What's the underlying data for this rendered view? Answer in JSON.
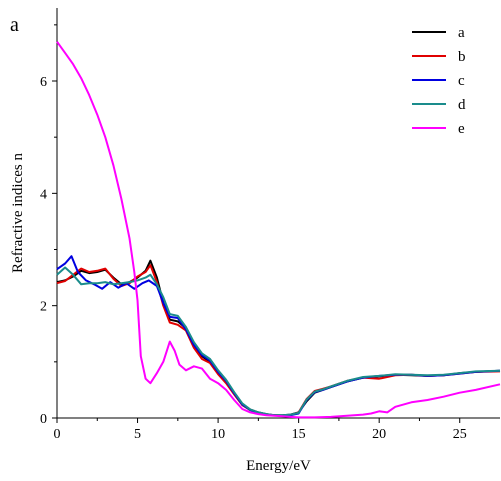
{
  "panel_label": "a",
  "chart_data": {
    "type": "line",
    "title": "",
    "xlabel": "Energy/eV",
    "ylabel": "Refractive indices n",
    "xlim": [
      0,
      27.5
    ],
    "ylim": [
      0,
      7.3
    ],
    "xticks": [
      0,
      5,
      10,
      15,
      20,
      25
    ],
    "yticks": [
      0,
      2,
      4,
      6
    ],
    "legend_position": "top-right",
    "grid": false,
    "series": [
      {
        "name": "a",
        "color": "#000000",
        "x": [
          0,
          0.5,
          1,
          1.5,
          2,
          2.5,
          3,
          3.5,
          4,
          4.5,
          5,
          5.5,
          5.8,
          6.2,
          6.6,
          7,
          7.5,
          8,
          8.5,
          9,
          9.5,
          10,
          10.5,
          11,
          11.5,
          12,
          12.5,
          13,
          13.5,
          14,
          14.5,
          15,
          15.5,
          16,
          16.5,
          17,
          18,
          19,
          20,
          21,
          22,
          23,
          24,
          25,
          26,
          27.5
        ],
        "y": [
          2.42,
          2.45,
          2.52,
          2.62,
          2.58,
          2.6,
          2.64,
          2.5,
          2.38,
          2.42,
          2.5,
          2.62,
          2.8,
          2.5,
          2.05,
          1.75,
          1.72,
          1.6,
          1.3,
          1.1,
          1.0,
          0.8,
          0.65,
          0.45,
          0.25,
          0.15,
          0.1,
          0.07,
          0.05,
          0.05,
          0.06,
          0.1,
          0.3,
          0.45,
          0.5,
          0.55,
          0.65,
          0.72,
          0.74,
          0.77,
          0.76,
          0.75,
          0.76,
          0.8,
          0.82,
          0.84
        ]
      },
      {
        "name": "b",
        "color": "#e00000",
        "x": [
          0,
          0.5,
          1,
          1.5,
          2,
          2.5,
          3,
          3.5,
          4,
          4.5,
          5,
          5.5,
          5.8,
          6.2,
          6.6,
          7,
          7.5,
          8,
          8.5,
          9,
          9.5,
          10,
          10.5,
          11,
          11.5,
          12,
          12.5,
          13,
          13.5,
          14,
          14.5,
          15,
          15.5,
          16,
          16.5,
          17,
          18,
          19,
          20,
          21,
          22,
          23,
          24,
          25,
          26,
          27.5
        ],
        "y": [
          2.4,
          2.44,
          2.55,
          2.66,
          2.6,
          2.62,
          2.66,
          2.48,
          2.35,
          2.4,
          2.52,
          2.6,
          2.72,
          2.42,
          2.0,
          1.7,
          1.66,
          1.56,
          1.25,
          1.05,
          0.98,
          0.78,
          0.62,
          0.42,
          0.23,
          0.14,
          0.09,
          0.06,
          0.05,
          0.04,
          0.05,
          0.1,
          0.34,
          0.48,
          0.52,
          0.56,
          0.66,
          0.72,
          0.7,
          0.76,
          0.77,
          0.75,
          0.76,
          0.79,
          0.82,
          0.83
        ]
      },
      {
        "name": "c",
        "color": "#0000e0",
        "x": [
          0,
          0.5,
          0.9,
          1.3,
          1.8,
          2.3,
          2.8,
          3.3,
          3.8,
          4.3,
          4.8,
          5.3,
          5.7,
          6.2,
          6.6,
          7,
          7.5,
          8,
          8.5,
          9,
          9.5,
          10,
          10.5,
          11,
          11.5,
          12,
          12.5,
          13,
          13.5,
          14,
          14.5,
          15,
          15.5,
          16,
          16.5,
          17,
          18,
          19,
          20,
          21,
          22,
          23,
          24,
          25,
          26,
          27.5
        ],
        "y": [
          2.65,
          2.75,
          2.88,
          2.6,
          2.45,
          2.38,
          2.3,
          2.42,
          2.32,
          2.4,
          2.3,
          2.4,
          2.45,
          2.35,
          2.05,
          1.8,
          1.78,
          1.58,
          1.3,
          1.12,
          1.02,
          0.82,
          0.66,
          0.44,
          0.24,
          0.14,
          0.09,
          0.06,
          0.05,
          0.04,
          0.05,
          0.08,
          0.32,
          0.46,
          0.5,
          0.55,
          0.65,
          0.72,
          0.75,
          0.77,
          0.77,
          0.75,
          0.76,
          0.79,
          0.82,
          0.84
        ]
      },
      {
        "name": "d",
        "color": "#1a8c8c",
        "x": [
          0,
          0.5,
          1,
          1.5,
          2,
          2.5,
          3,
          3.5,
          4,
          4.5,
          5,
          5.5,
          5.8,
          6.2,
          6.6,
          7,
          7.5,
          8,
          8.5,
          9,
          9.5,
          10,
          10.5,
          11,
          11.5,
          12,
          12.5,
          13,
          13.5,
          14,
          14.5,
          15,
          15.5,
          16,
          16.5,
          17,
          18,
          19,
          20,
          21,
          22,
          23,
          24,
          25,
          26,
          27.5
        ],
        "y": [
          2.55,
          2.68,
          2.55,
          2.38,
          2.4,
          2.4,
          2.42,
          2.38,
          2.4,
          2.42,
          2.45,
          2.5,
          2.55,
          2.38,
          2.15,
          1.85,
          1.82,
          1.62,
          1.35,
          1.15,
          1.05,
          0.85,
          0.68,
          0.46,
          0.26,
          0.15,
          0.1,
          0.07,
          0.05,
          0.05,
          0.06,
          0.09,
          0.33,
          0.47,
          0.51,
          0.56,
          0.66,
          0.73,
          0.75,
          0.78,
          0.77,
          0.76,
          0.77,
          0.8,
          0.83,
          0.84
        ]
      },
      {
        "name": "e",
        "color": "#ff00ff",
        "x": [
          0,
          0.5,
          1,
          1.5,
          2,
          2.5,
          3,
          3.5,
          4,
          4.5,
          4.8,
          5,
          5.2,
          5.5,
          5.8,
          6.2,
          6.6,
          7,
          7.3,
          7.6,
          8,
          8.5,
          9,
          9.5,
          10,
          10.5,
          11,
          11.5,
          12,
          12.5,
          13,
          13.5,
          14,
          14.5,
          15,
          16,
          17,
          18,
          19,
          19.5,
          20,
          20.5,
          21,
          22,
          23,
          24,
          25,
          26,
          27.5
        ],
        "y": [
          6.7,
          6.5,
          6.3,
          6.05,
          5.75,
          5.4,
          5.0,
          4.5,
          3.9,
          3.2,
          2.6,
          2.1,
          1.1,
          0.7,
          0.62,
          0.8,
          1.0,
          1.36,
          1.2,
          0.95,
          0.85,
          0.92,
          0.88,
          0.7,
          0.62,
          0.5,
          0.32,
          0.16,
          0.1,
          0.07,
          0.05,
          0.04,
          0.03,
          0.02,
          0.01,
          0.01,
          0.02,
          0.04,
          0.06,
          0.08,
          0.12,
          0.1,
          0.2,
          0.28,
          0.32,
          0.38,
          0.45,
          0.5,
          0.6
        ]
      }
    ]
  }
}
